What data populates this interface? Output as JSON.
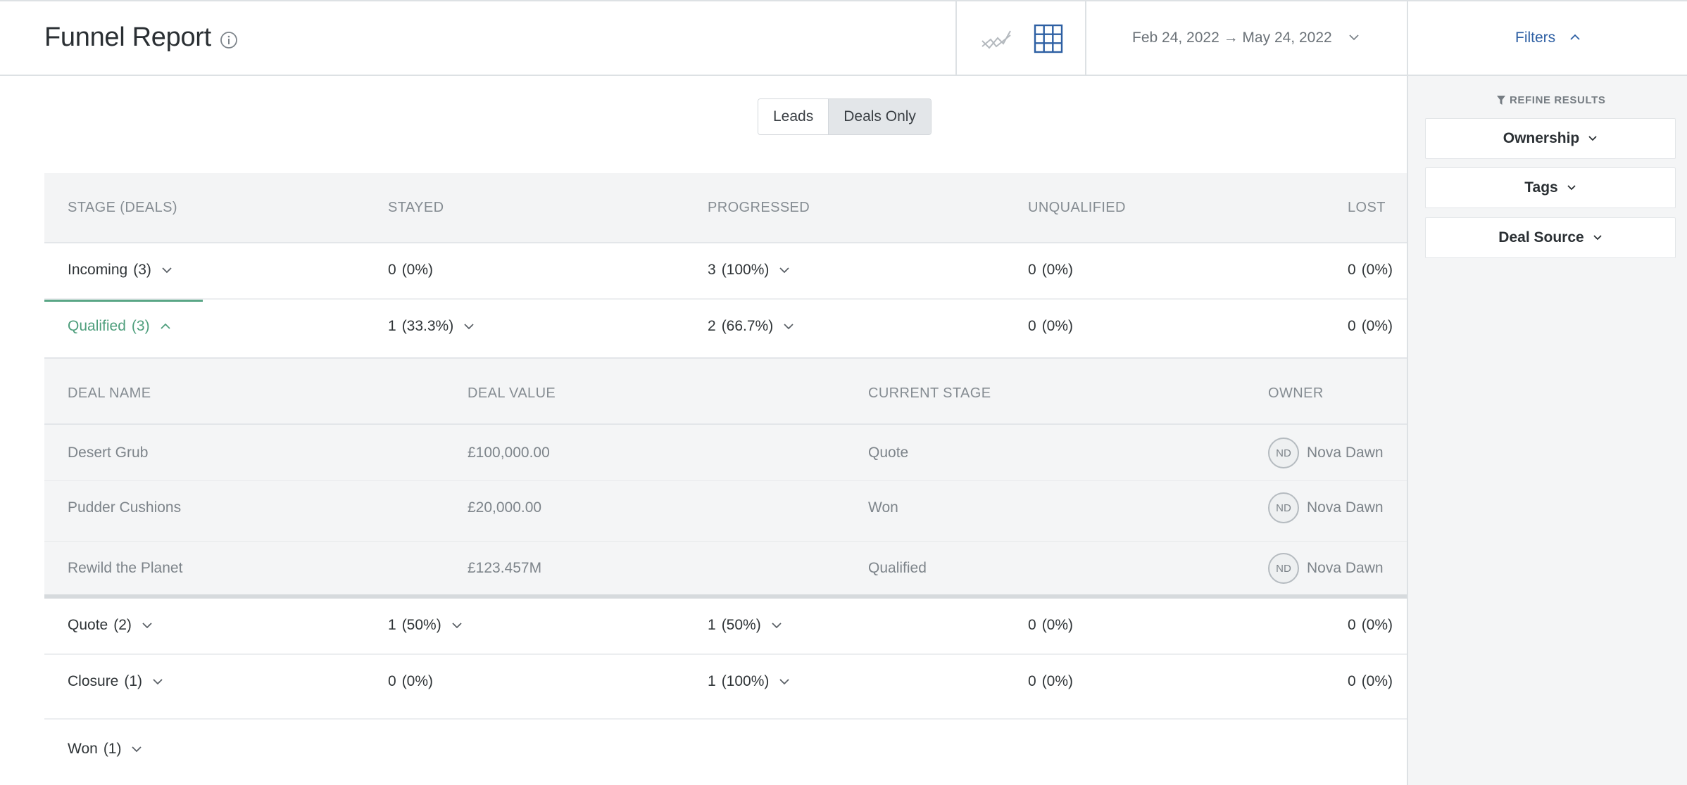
{
  "header": {
    "title": "Funnel Report",
    "date_range": "Feb 24, 2022 → May 24, 2022",
    "filters_label": "Filters"
  },
  "toggle": {
    "leads_label": "Leads",
    "deals_label": "Deals Only",
    "selected": "Deals Only"
  },
  "sidebar": {
    "heading": "REFINE RESULTS",
    "filters": [
      "Ownership",
      "Tags",
      "Deal Source"
    ]
  },
  "table": {
    "columns": [
      "STAGE (DEALS)",
      "STAYED",
      "PROGRESSED",
      "UNQUALIFIED",
      "LOST"
    ],
    "rows": [
      {
        "stage": "Incoming",
        "count": "(3)",
        "stayed": "0",
        "stayed_pct": "(0%)",
        "progressed": "3",
        "progressed_pct": "(100%)",
        "unqualified": "0",
        "unqualified_pct": "(0%)",
        "lost": "0",
        "lost_pct": "(0%)"
      },
      {
        "stage": "Qualified",
        "count": "(3)",
        "stayed": "1",
        "stayed_pct": "(33.3%)",
        "progressed": "2",
        "progressed_pct": "(66.7%)",
        "unqualified": "0",
        "unqualified_pct": "(0%)",
        "lost": "0",
        "lost_pct": "(0%)"
      },
      {
        "stage": "Quote",
        "count": "(2)",
        "stayed": "1",
        "stayed_pct": "(50%)",
        "progressed": "1",
        "progressed_pct": "(50%)",
        "unqualified": "0",
        "unqualified_pct": "(0%)",
        "lost": "0",
        "lost_pct": "(0%)"
      },
      {
        "stage": "Closure",
        "count": "(1)",
        "stayed": "0",
        "stayed_pct": "(0%)",
        "progressed": "1",
        "progressed_pct": "(100%)",
        "unqualified": "0",
        "unqualified_pct": "(0%)",
        "lost": "0",
        "lost_pct": "(0%)"
      },
      {
        "stage": "Won",
        "count": "(1)"
      }
    ]
  },
  "deals": {
    "columns": [
      "DEAL NAME",
      "DEAL VALUE",
      "CURRENT STAGE",
      "OWNER"
    ],
    "rows": [
      {
        "name": "Desert Grub",
        "value": "£100,000.00",
        "stage": "Quote",
        "owner_initials": "ND",
        "owner": "Nova Dawn"
      },
      {
        "name": "Pudder Cushions",
        "value": "£20,000.00",
        "stage": "Won",
        "owner_initials": "ND",
        "owner": "Nova Dawn"
      },
      {
        "name": "Rewild the Planet",
        "value": "£123.457M",
        "stage": "Qualified",
        "owner_initials": "ND",
        "owner": "Nova Dawn"
      }
    ]
  },
  "colors": {
    "accent_blue": "#2d5fa3",
    "accent_green": "#4e9e7c",
    "header_gray": "#f3f4f5"
  }
}
